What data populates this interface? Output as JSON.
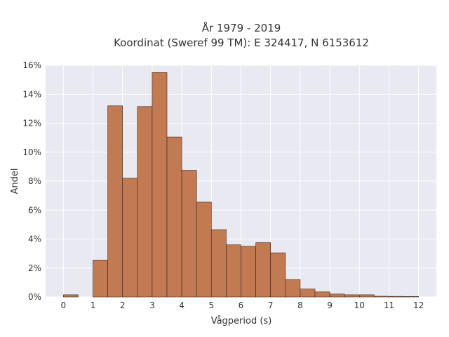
{
  "chart_data": {
    "type": "bar",
    "title": "År 1979 - 2019",
    "subtitle": "Koordinat (Sweref 99 TM): E 324417, N 6153612",
    "xlabel": "Vågperiod (s)",
    "ylabel": "Andel",
    "xlim": [
      -0.6,
      12.6
    ],
    "ylim": [
      0,
      16
    ],
    "x_ticks": [
      0,
      1,
      2,
      3,
      4,
      5,
      6,
      7,
      8,
      9,
      10,
      11,
      12
    ],
    "y_ticks": [
      0,
      2,
      4,
      6,
      8,
      10,
      12,
      14,
      16
    ],
    "y_tick_suffix": "%",
    "bin_width": 0.5,
    "bins_start": [
      0,
      1,
      1.5,
      2,
      2.5,
      3,
      3.5,
      4,
      4.5,
      5,
      5.5,
      6,
      6.5,
      7,
      7.5,
      8,
      8.5,
      9,
      9.5,
      10,
      10.5,
      11,
      11.5
    ],
    "values": [
      0.15,
      2.55,
      13.2,
      8.2,
      13.15,
      15.5,
      11.05,
      8.75,
      6.55,
      4.65,
      3.6,
      3.5,
      3.75,
      3.05,
      1.2,
      0.55,
      0.35,
      0.2,
      0.15,
      0.15,
      0.05,
      0.04,
      0.03
    ],
    "grid": true,
    "colors": {
      "bar_fill": "#c17a52",
      "bar_edge": "#3a2418",
      "plot_bg": "#e9e9f1",
      "grid": "#ffffff",
      "text": "#333333"
    }
  }
}
